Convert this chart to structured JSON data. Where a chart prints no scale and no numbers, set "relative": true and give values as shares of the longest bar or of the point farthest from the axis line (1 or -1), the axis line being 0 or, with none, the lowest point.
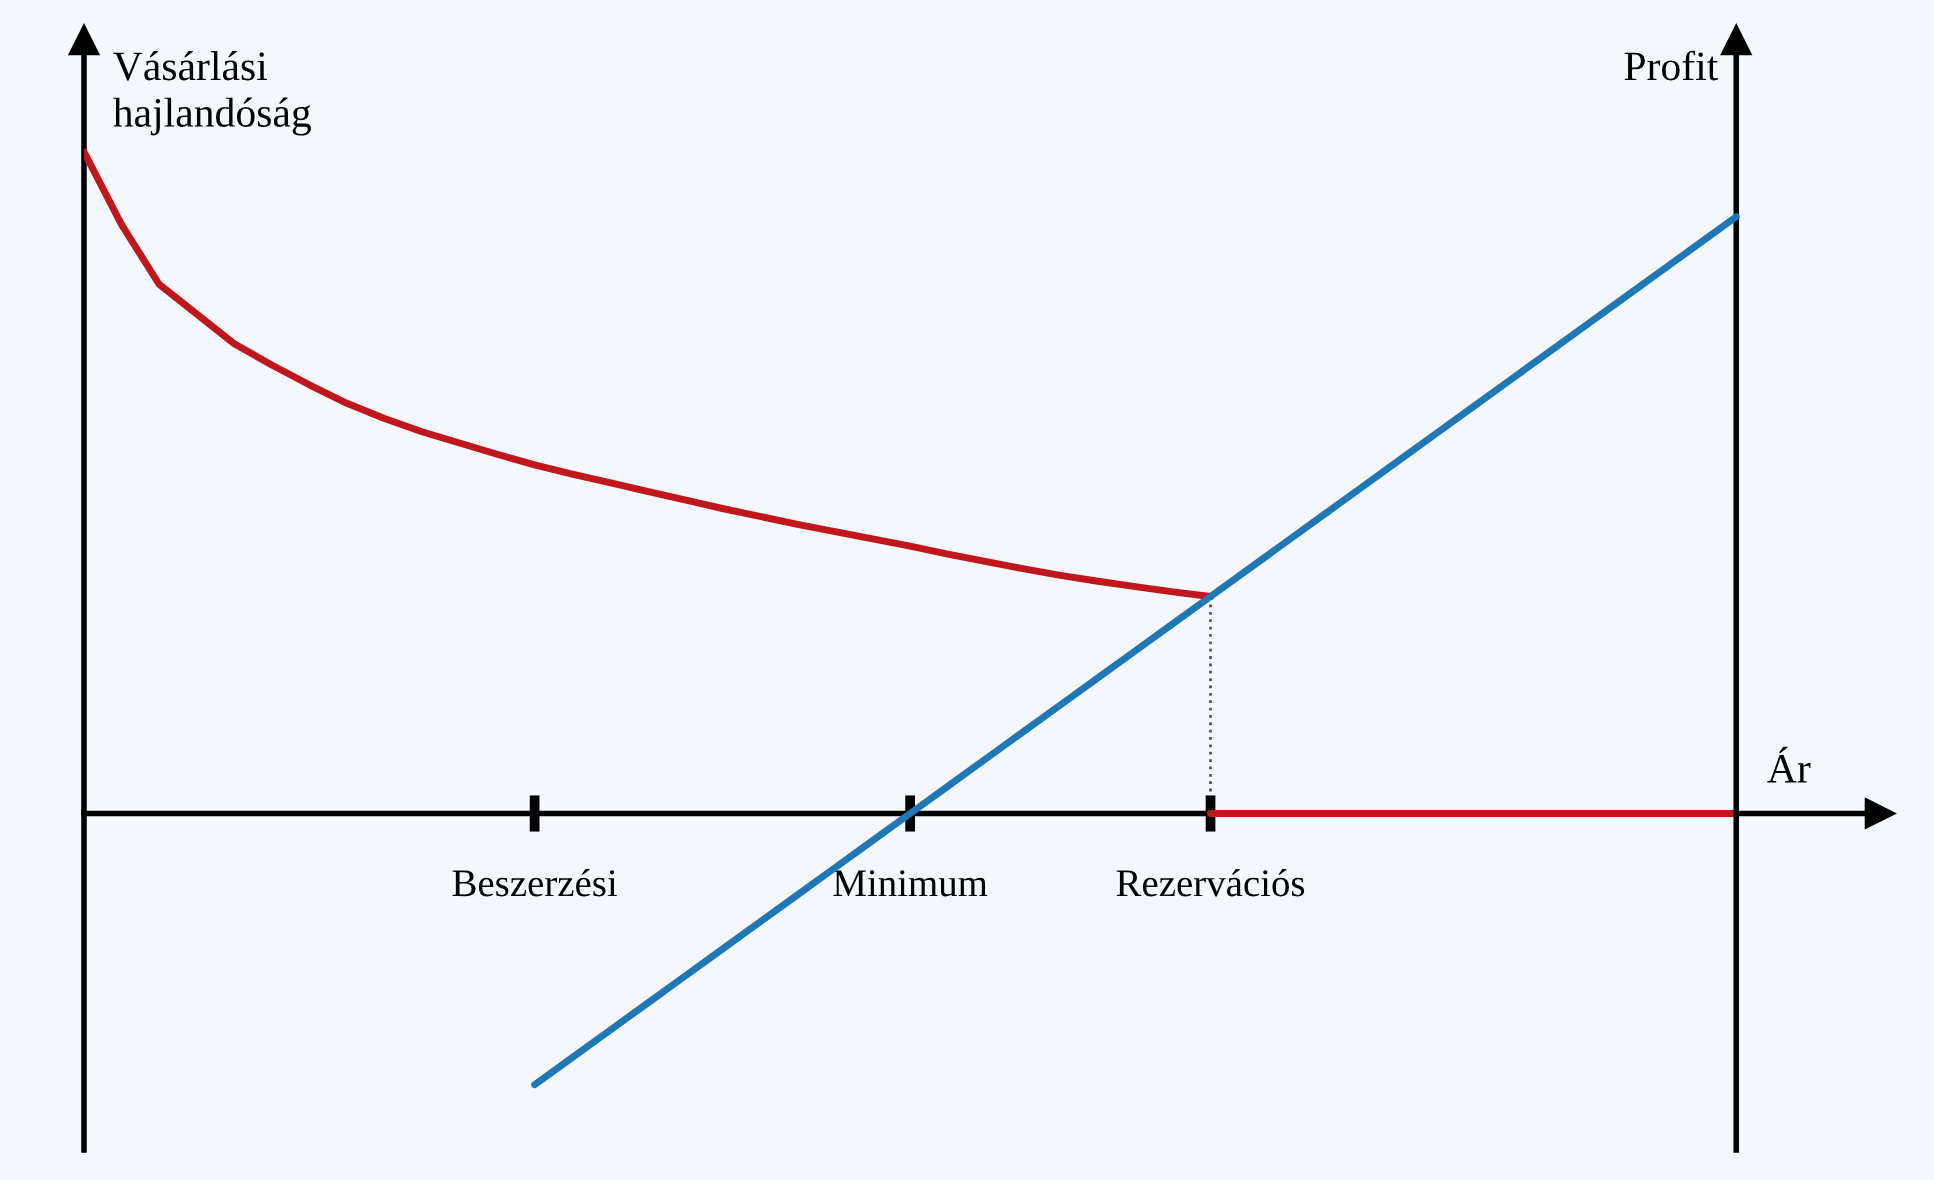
{
  "chart_data": {
    "type": "line",
    "relative": true,
    "xlabel": "Ár",
    "ylabel": "Vásárlási\nhajlandóság",
    "y2label": "Profit",
    "categories": [
      null,
      null,
      null,
      null,
      null,
      null,
      null,
      null,
      null,
      null,
      null,
      null,
      "Beszerzési",
      null,
      null,
      null,
      null,
      null,
      null,
      null,
      null,
      null,
      "Minimum",
      null,
      null,
      null,
      null,
      null,
      null,
      null,
      "Rezervációs",
      null,
      null,
      null,
      null,
      null,
      null,
      null,
      null,
      null,
      null,
      null,
      null,
      null,
      null
    ],
    "legend": false,
    "marker": "none",
    "ref_lines": [
      {
        "axis": "x",
        "value": "Rezervációs",
        "line_style": "dotted",
        "color": "#555555"
      }
    ],
    "series": [
      {
        "color": "#c0171d",
        "values": [
          1.0,
          0.89,
          0.8,
          0.755,
          0.71,
          0.678,
          0.648,
          0.62,
          0.597,
          0.577,
          0.56,
          0.543,
          0.527,
          0.513,
          0.5,
          0.487,
          0.474,
          0.461,
          0.449,
          0.437,
          0.426,
          0.415,
          0.404,
          0.392,
          0.381,
          0.37,
          0.36,
          0.351,
          0.343,
          0.335,
          0.328,
          null,
          null,
          null,
          null,
          null,
          null,
          null,
          null,
          null,
          null,
          null,
          null,
          null,
          null
        ]
      },
      {
        "color": "#c0171d",
        "values": [
          null,
          null,
          null,
          null,
          null,
          null,
          null,
          null,
          null,
          null,
          null,
          null,
          null,
          null,
          null,
          null,
          null,
          null,
          null,
          null,
          null,
          null,
          null,
          null,
          null,
          null,
          null,
          null,
          null,
          null,
          0,
          null,
          null,
          null,
          null,
          null,
          null,
          null,
          null,
          null,
          null,
          null,
          null,
          null,
          0
        ]
      },
      {
        "color": "#1f78b4",
        "axis": "y2",
        "values": [
          null,
          null,
          null,
          null,
          null,
          null,
          null,
          null,
          null,
          null,
          null,
          null,
          -0.41,
          -0.369,
          -0.328,
          -0.287,
          -0.246,
          -0.205,
          -0.164,
          -0.123,
          -0.082,
          -0.041,
          0,
          0.041,
          0.082,
          0.123,
          0.164,
          0.205,
          0.246,
          0.287,
          0.328,
          0.369,
          0.41,
          0.451,
          0.492,
          0.533,
          0.574,
          0.615,
          0.656,
          0.697,
          0.738,
          0.779,
          0.82,
          0.861,
          0.902
        ]
      }
    ]
  }
}
